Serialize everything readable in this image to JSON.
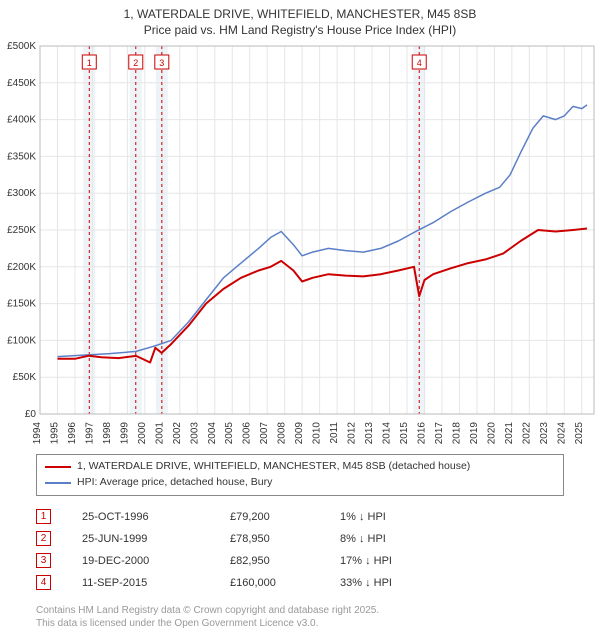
{
  "title_line1": "1, WATERDALE DRIVE, WHITEFIELD, MANCHESTER, M45 8SB",
  "title_line2": "Price paid vs. HM Land Registry's House Price Index (HPI)",
  "chart": {
    "type": "line",
    "background_color": "#ffffff",
    "grid_color": "#e6e6e6",
    "plot_border_color": "#bbbbbb",
    "event_band_color": "#eef3f8",
    "event_line_color": "#cc0000",
    "event_line_dash": "3,3",
    "x_years": [
      1994,
      1995,
      1996,
      1997,
      1998,
      1999,
      2000,
      2001,
      2002,
      2003,
      2004,
      2005,
      2006,
      2007,
      2008,
      2009,
      2010,
      2011,
      2012,
      2013,
      2014,
      2015,
      2016,
      2017,
      2018,
      2019,
      2020,
      2021,
      2022,
      2023,
      2024,
      2025
    ],
    "ylim": [
      0,
      500000
    ],
    "ytick_step": 50000,
    "ytick_labels": [
      "£0",
      "£50K",
      "£100K",
      "£150K",
      "£200K",
      "£250K",
      "£300K",
      "£350K",
      "£400K",
      "£450K",
      "£500K"
    ],
    "xlim": [
      1994,
      2025.7
    ],
    "series": {
      "price_paid": {
        "label": "1, WATERDALE DRIVE, WHITEFIELD, MANCHESTER, M45 8SB (detached house)",
        "color": "#cc0000",
        "width": 2,
        "points": [
          [
            1995.0,
            75000
          ],
          [
            1996.0,
            75000
          ],
          [
            1996.8,
            79200
          ],
          [
            1997.5,
            77000
          ],
          [
            1998.5,
            76000
          ],
          [
            1999.5,
            78950
          ],
          [
            2000.3,
            70000
          ],
          [
            2000.6,
            90000
          ],
          [
            2000.96,
            82950
          ],
          [
            2001.5,
            95000
          ],
          [
            2002.5,
            120000
          ],
          [
            2003.5,
            150000
          ],
          [
            2004.5,
            170000
          ],
          [
            2005.5,
            185000
          ],
          [
            2006.5,
            195000
          ],
          [
            2007.2,
            200000
          ],
          [
            2007.8,
            208000
          ],
          [
            2008.5,
            195000
          ],
          [
            2009.0,
            180000
          ],
          [
            2009.6,
            185000
          ],
          [
            2010.5,
            190000
          ],
          [
            2011.5,
            188000
          ],
          [
            2012.5,
            187000
          ],
          [
            2013.5,
            190000
          ],
          [
            2014.5,
            195000
          ],
          [
            2015.4,
            200000
          ],
          [
            2015.7,
            160000
          ],
          [
            2016.0,
            182000
          ],
          [
            2016.5,
            190000
          ],
          [
            2017.5,
            198000
          ],
          [
            2018.5,
            205000
          ],
          [
            2019.5,
            210000
          ],
          [
            2020.5,
            218000
          ],
          [
            2021.5,
            235000
          ],
          [
            2022.5,
            250000
          ],
          [
            2023.5,
            248000
          ],
          [
            2024.5,
            250000
          ],
          [
            2025.3,
            252000
          ]
        ]
      },
      "hpi": {
        "label": "HPI: Average price, detached house, Bury",
        "color": "#5b7fc7",
        "width": 1.5,
        "points": [
          [
            1995.0,
            78000
          ],
          [
            1996.5,
            80000
          ],
          [
            1998.0,
            82000
          ],
          [
            1999.5,
            85000
          ],
          [
            2000.5,
            92000
          ],
          [
            2001.5,
            100000
          ],
          [
            2002.5,
            125000
          ],
          [
            2003.5,
            155000
          ],
          [
            2004.5,
            185000
          ],
          [
            2005.5,
            205000
          ],
          [
            2006.5,
            225000
          ],
          [
            2007.2,
            240000
          ],
          [
            2007.8,
            248000
          ],
          [
            2008.5,
            230000
          ],
          [
            2009.0,
            215000
          ],
          [
            2009.6,
            220000
          ],
          [
            2010.5,
            225000
          ],
          [
            2011.5,
            222000
          ],
          [
            2012.5,
            220000
          ],
          [
            2013.5,
            225000
          ],
          [
            2014.5,
            235000
          ],
          [
            2015.5,
            248000
          ],
          [
            2016.5,
            260000
          ],
          [
            2017.5,
            275000
          ],
          [
            2018.5,
            288000
          ],
          [
            2019.5,
            300000
          ],
          [
            2020.3,
            308000
          ],
          [
            2020.9,
            325000
          ],
          [
            2021.5,
            355000
          ],
          [
            2022.2,
            388000
          ],
          [
            2022.8,
            405000
          ],
          [
            2023.5,
            400000
          ],
          [
            2024.0,
            405000
          ],
          [
            2024.5,
            418000
          ],
          [
            2025.0,
            415000
          ],
          [
            2025.3,
            420000
          ]
        ]
      }
    },
    "events": [
      {
        "n": "1",
        "year": 1996.82
      },
      {
        "n": "2",
        "year": 1999.48
      },
      {
        "n": "3",
        "year": 2000.97
      },
      {
        "n": "4",
        "year": 2015.7
      }
    ]
  },
  "legend": {
    "series1_label": "1, WATERDALE DRIVE, WHITEFIELD, MANCHESTER, M45 8SB (detached house)",
    "series1_color": "#cc0000",
    "series2_label": "HPI: Average price, detached house, Bury",
    "series2_color": "#5b7fc7"
  },
  "events_table": [
    {
      "n": "1",
      "date": "25-OCT-1996",
      "price": "£79,200",
      "delta": "1% ↓ HPI"
    },
    {
      "n": "2",
      "date": "25-JUN-1999",
      "price": "£78,950",
      "delta": "8% ↓ HPI"
    },
    {
      "n": "3",
      "date": "19-DEC-2000",
      "price": "£82,950",
      "delta": "17% ↓ HPI"
    },
    {
      "n": "4",
      "date": "11-SEP-2015",
      "price": "£160,000",
      "delta": "33% ↓ HPI"
    }
  ],
  "footer_line1": "Contains HM Land Registry data © Crown copyright and database right 2025.",
  "footer_line2": "This data is licensed under the Open Government Licence v3.0."
}
